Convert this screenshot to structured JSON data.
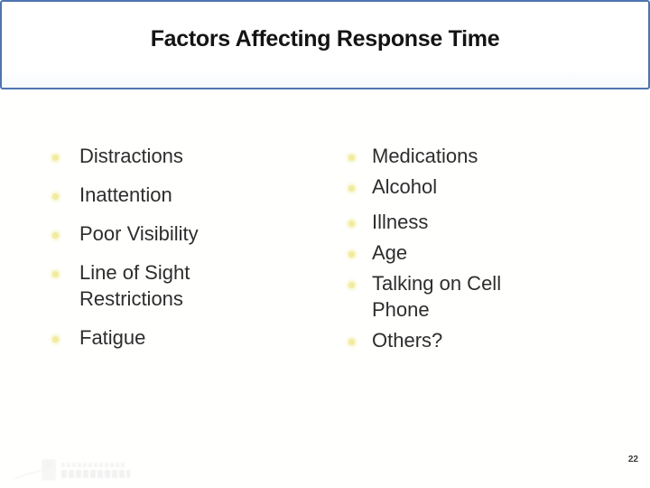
{
  "slide": {
    "title": "Factors Affecting Response Time",
    "left_column": {
      "items": [
        "Distractions",
        "Inattention",
        "Poor Visibility",
        "Line of Sight Restrictions",
        "Fatigue"
      ]
    },
    "right_column": {
      "group1": [
        "Medications",
        "Alcohol"
      ],
      "group2": [
        "Illness",
        "Age",
        "Talking on Cell Phone",
        "Others?"
      ]
    },
    "page_number": "22",
    "colors": {
      "title_border_blue": "#4e74b0",
      "bullet_yellow": "#f1ec9e",
      "body_text": "#2d2d2d",
      "title_text": "#141414"
    }
  }
}
